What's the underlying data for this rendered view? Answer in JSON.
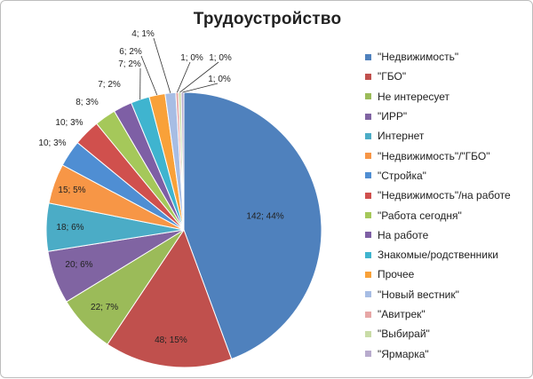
{
  "chart_data": {
    "type": "pie",
    "title": "Трудоустройство",
    "legend_position": "right",
    "series": [
      {
        "name": "\"Недвижимость\"",
        "value": 142,
        "percent": "44%",
        "label": "142; 44%",
        "color": "#4f81bd"
      },
      {
        "name": "\"ГБО\"",
        "value": 48,
        "percent": "15%",
        "label": "48; 15%",
        "color": "#c0504d"
      },
      {
        "name": "Не интересует",
        "value": 22,
        "percent": "7%",
        "label": "22; 7%",
        "color": "#9bbb59"
      },
      {
        "name": "\"ИРР\"",
        "value": 20,
        "percent": "6%",
        "label": "20; 6%",
        "color": "#8064a2"
      },
      {
        "name": "Интернет",
        "value": 18,
        "percent": "6%",
        "label": "18; 6%",
        "color": "#4bacc6"
      },
      {
        "name": "\"Недвижимость\"/\"ГБО\"",
        "value": 15,
        "percent": "5%",
        "label": "15; 5%",
        "color": "#f79646"
      },
      {
        "name": "\"Стройка\"",
        "value": 10,
        "percent": "3%",
        "label": "10; 3%",
        "color": "#4f8ed3"
      },
      {
        "name": "\"Недвижимость\"/на работе",
        "value": 10,
        "percent": "3%",
        "label": "10; 3%",
        "color": "#d0504d"
      },
      {
        "name": "\"Работа сегодня\"",
        "value": 8,
        "percent": "3%",
        "label": "8; 3%",
        "color": "#a5c85a"
      },
      {
        "name": "На работе",
        "value": 7,
        "percent": "2%",
        "label": "7; 2%",
        "color": "#7e5fa5"
      },
      {
        "name": "Знакомые/родственники",
        "value": 7,
        "percent": "2%",
        "label": "7; 2%",
        "color": "#3fb4cf"
      },
      {
        "name": "Прочее",
        "value": 6,
        "percent": "2%",
        "label": "6; 2%",
        "color": "#f9a139"
      },
      {
        "name": "\"Новый вестник\"",
        "value": 4,
        "percent": "1%",
        "label": "4; 1%",
        "color": "#a7bde4"
      },
      {
        "name": "\"Авитрек\"",
        "value": 1,
        "percent": "0%",
        "label": "1; 0%",
        "color": "#e7a7a6"
      },
      {
        "name": "\"Выбирай\"",
        "value": 1,
        "percent": "0%",
        "label": "1; 0%",
        "color": "#c9dca7"
      },
      {
        "name": "\"Ярмарка\"",
        "value": 1,
        "percent": "0%",
        "label": "1; 0%",
        "color": "#b8abcd"
      }
    ]
  }
}
